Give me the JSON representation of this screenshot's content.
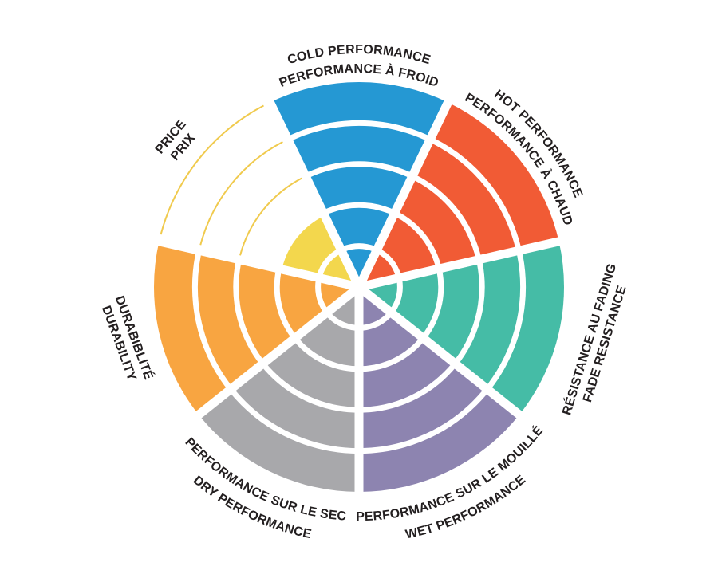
{
  "chart_data": {
    "type": "pie",
    "subtype": "radial-rating-wheel (7 sectors, 5 concentric rating rings, white separators)",
    "title": "",
    "rings_total": 5,
    "legend_position": "none",
    "grid": "white concentric ring gaps and white radial gaps between sectors",
    "gap_color": "#ffffff",
    "text_color": "#231f20",
    "categories": [
      "COLD PERFORMANCE / PERFORMANCE À FROID",
      "HOT PERFORMANCE / PERFORMANCE À CHAUD",
      "RÉSISTANCE AU FADING / FADE RESISTANCE",
      "PERFORMANCE SUR LE MOUILLÉ / WET PERFORMANCE",
      "PERFORMANCE SUR LE SEC / DRY PERFORMANCE",
      "DURABIBLITÉ / DURABILITY",
      "PRICE / PRIX"
    ],
    "values": [
      5,
      5,
      5,
      5,
      5,
      5,
      2
    ],
    "segments": [
      {
        "id": "cold",
        "line1": "COLD PERFORMANCE",
        "line2": "PERFORMANCE À FROID",
        "value": 5,
        "color": "#2598d3"
      },
      {
        "id": "hot",
        "line1": "HOT PERFORMANCE",
        "line2": "PERFORMANCE À CHAUD",
        "value": 5,
        "color": "#f15b35"
      },
      {
        "id": "fade",
        "line1": "RÉSISTANCE AU FADING",
        "line2": "FADE RESISTANCE",
        "value": 5,
        "color": "#45bca6"
      },
      {
        "id": "wet",
        "line1": "PERFORMANCE SUR LE MOUILLÉ",
        "line2": "WET PERFORMANCE",
        "value": 5,
        "color": "#8d84b0"
      },
      {
        "id": "dry",
        "line1": "PERFORMANCE SUR LE SEC",
        "line2": "DRY PERFORMANCE",
        "value": 5,
        "color": "#a8a8ab"
      },
      {
        "id": "durability",
        "line1": "DURABIBLITÉ",
        "line2": "DURABILITY",
        "value": 5,
        "color": "#f8a541"
      },
      {
        "id": "price",
        "line1": "PRICE",
        "line2": "PRIX",
        "value": 2,
        "color": "#f3d74d",
        "outline_color": "#f0ca4d"
      }
    ]
  }
}
